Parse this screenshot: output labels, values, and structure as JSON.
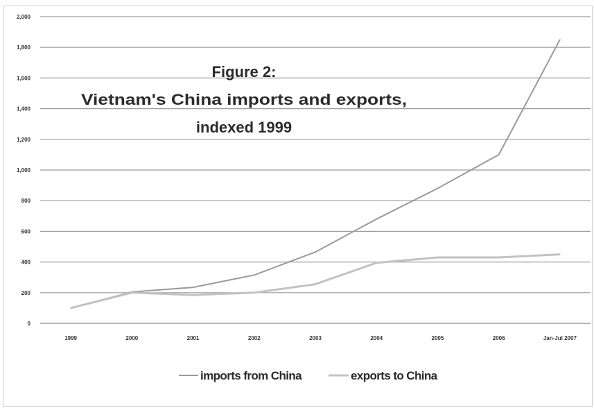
{
  "chart_data": {
    "type": "line",
    "title_lines": [
      "Figure 2:",
      "Vietnam's China imports and exports,",
      "indexed 1999"
    ],
    "categories": [
      "1999",
      "2000",
      "2001",
      "2002",
      "2003",
      "2004",
      "2005",
      "2006",
      "Jan-Jul 2007"
    ],
    "ylim": [
      0,
      2000
    ],
    "yticks": [
      "0",
      "200",
      "400",
      "600",
      "800",
      "1,000",
      "1,200",
      "1,400",
      "1,600",
      "1,800",
      "2,000"
    ],
    "grid": true,
    "legend_position": "bottom",
    "series": [
      {
        "name": "imports from China",
        "color": "#9a9a9a",
        "values": [
          100,
          205,
          235,
          315,
          465,
          680,
          880,
          1100,
          1850
        ]
      },
      {
        "name": "exports to China",
        "color": "#c2c2c2",
        "values": [
          100,
          200,
          185,
          200,
          255,
          395,
          430,
          430,
          450
        ]
      }
    ]
  }
}
